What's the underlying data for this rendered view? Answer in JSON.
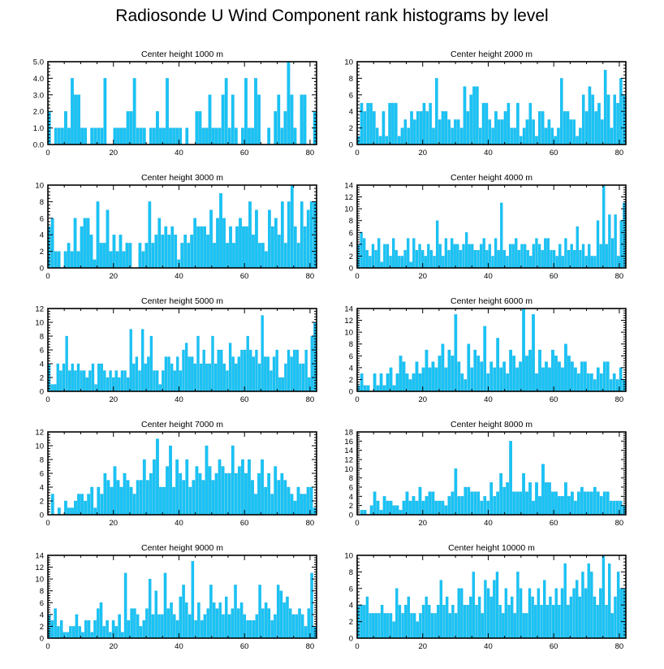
{
  "title": "Radiosonde U Wind Component rank histograms by level",
  "colors": {
    "bar": "#19c3f5",
    "bar_edge": "#0aa8dc",
    "axis": "#000000"
  },
  "chart_data": [
    {
      "type": "bar",
      "title": "Center height 1000 m",
      "xlim": [
        0,
        82
      ],
      "ylim": [
        0,
        5
      ],
      "xticks": [
        0,
        20,
        40,
        60,
        80
      ],
      "yticks": [
        0,
        1,
        2,
        3,
        4,
        5
      ],
      "ytick_labels": [
        "0.0",
        "1.0",
        "2.0",
        "3.0",
        "4.0",
        "5.0"
      ],
      "values": [
        2,
        0,
        1,
        1,
        1,
        2,
        1,
        4,
        3,
        3,
        1,
        1,
        0,
        1,
        1,
        1,
        1,
        4,
        0,
        0,
        1,
        1,
        1,
        1,
        2,
        2,
        4,
        1,
        1,
        1,
        0,
        1,
        1,
        2,
        1,
        1,
        4,
        1,
        1,
        1,
        1,
        0,
        1,
        0,
        0,
        2,
        2,
        1,
        1,
        3,
        1,
        1,
        1,
        3,
        4,
        1,
        3,
        1,
        0,
        1,
        4,
        1,
        1,
        4,
        3,
        0,
        0,
        1,
        0,
        2,
        3,
        1,
        2,
        5,
        3,
        1,
        0,
        3,
        3,
        0,
        0,
        2
      ]
    },
    {
      "type": "bar",
      "title": "Center height 2000 m",
      "xlim": [
        0,
        82
      ],
      "ylim": [
        0,
        10
      ],
      "xticks": [
        0,
        20,
        40,
        60,
        80
      ],
      "yticks": [
        0,
        2,
        4,
        6,
        8,
        10
      ],
      "ytick_labels": [
        "0",
        "2",
        "4",
        "6",
        "8",
        "10"
      ],
      "values": [
        1,
        5,
        4,
        5,
        5,
        4,
        2,
        1,
        4,
        1,
        5,
        5,
        5,
        1,
        2,
        3,
        2,
        4,
        3,
        4,
        4,
        5,
        4,
        5,
        2,
        8,
        3,
        4,
        4,
        3,
        2,
        3,
        3,
        2,
        7,
        4,
        6,
        7,
        7,
        2,
        5,
        5,
        3,
        2,
        4,
        3,
        3,
        4,
        5,
        2,
        2,
        5,
        1,
        2,
        3,
        5,
        3,
        1,
        4,
        4,
        2,
        3,
        2,
        1,
        2,
        8,
        4,
        4,
        3,
        3,
        1,
        2,
        6,
        4,
        7,
        6,
        4,
        5,
        3,
        9,
        6,
        2,
        6,
        5,
        8,
        6
      ]
    },
    {
      "type": "bar",
      "title": "Center height 3000 m",
      "xlim": [
        0,
        82
      ],
      "ylim": [
        0,
        10
      ],
      "xticks": [
        0,
        20,
        40,
        60,
        80
      ],
      "yticks": [
        0,
        2,
        4,
        6,
        8,
        10
      ],
      "ytick_labels": [
        "0",
        "2",
        "4",
        "6",
        "8",
        "10"
      ],
      "values": [
        5,
        6,
        2,
        2,
        0,
        2,
        3,
        2,
        6,
        2,
        5,
        6,
        6,
        4,
        1,
        8,
        3,
        3,
        7,
        2,
        4,
        2,
        4,
        2,
        3,
        3,
        0,
        0,
        3,
        2,
        3,
        8,
        3,
        4,
        6,
        4,
        5,
        4,
        5,
        4,
        1,
        3,
        4,
        3,
        4,
        6,
        5,
        5,
        5,
        4,
        7,
        3,
        6,
        9,
        6,
        3,
        5,
        3,
        5,
        6,
        5,
        5,
        8,
        4,
        7,
        3,
        3,
        2,
        7,
        5,
        6,
        4,
        8,
        3,
        8,
        10,
        5,
        3,
        8,
        5,
        7,
        8,
        8
      ]
    },
    {
      "type": "bar",
      "title": "Center height 4000 m",
      "xlim": [
        0,
        82
      ],
      "ylim": [
        0,
        14
      ],
      "xticks": [
        0,
        20,
        40,
        60,
        80
      ],
      "yticks": [
        0,
        2,
        4,
        6,
        8,
        10,
        12,
        14
      ],
      "ytick_labels": [
        "0",
        "2",
        "4",
        "6",
        "8",
        "10",
        "12",
        "14"
      ],
      "values": [
        4,
        6,
        5,
        3,
        2,
        4,
        3,
        5,
        1,
        4,
        4,
        2,
        5,
        3,
        2,
        2,
        3,
        5,
        1,
        5,
        3,
        4,
        3,
        2,
        4,
        3,
        2,
        8,
        4,
        2,
        5,
        3,
        5,
        4,
        4,
        3,
        4,
        6,
        4,
        4,
        3,
        3,
        4,
        5,
        3,
        4,
        2,
        5,
        3,
        11,
        3,
        2,
        4,
        4,
        5,
        3,
        4,
        4,
        3,
        2,
        4,
        5,
        4,
        3,
        5,
        5,
        3,
        3,
        2,
        4,
        2,
        5,
        3,
        4,
        3,
        7,
        3,
        4,
        2,
        4,
        2,
        2,
        8,
        4,
        14,
        4,
        9,
        5,
        9,
        2,
        8,
        11
      ]
    },
    {
      "type": "bar",
      "title": "Center height 5000 m",
      "xlim": [
        0,
        82
      ],
      "ylim": [
        0,
        12
      ],
      "xticks": [
        0,
        20,
        40,
        60,
        80
      ],
      "yticks": [
        0,
        2,
        4,
        6,
        8,
        10,
        12
      ],
      "ytick_labels": [
        "0",
        "2",
        "4",
        "6",
        "8",
        "10",
        "12"
      ],
      "values": [
        4,
        1,
        1,
        4,
        3,
        4,
        8,
        3,
        4,
        3,
        4,
        3,
        3,
        2,
        3,
        4,
        1,
        4,
        4,
        3,
        2,
        3,
        2,
        3,
        2,
        3,
        3,
        2,
        9,
        4,
        5,
        3,
        9,
        4,
        5,
        8,
        3,
        3,
        1,
        3,
        5,
        5,
        4,
        3,
        5,
        3,
        6,
        7,
        5,
        5,
        4,
        8,
        4,
        6,
        4,
        4,
        8,
        4,
        6,
        6,
        4,
        3,
        7,
        5,
        4,
        5,
        6,
        6,
        8,
        6,
        5,
        6,
        4,
        11,
        5,
        5,
        3,
        5,
        6,
        2,
        2,
        4,
        6,
        5,
        6,
        6,
        4,
        4,
        6,
        2,
        8,
        10
      ]
    },
    {
      "type": "bar",
      "title": "Center height 6000 m",
      "xlim": [
        0,
        82
      ],
      "ylim": [
        0,
        14
      ],
      "xticks": [
        0,
        20,
        40,
        60,
        80
      ],
      "yticks": [
        0,
        2,
        4,
        6,
        8,
        10,
        12,
        14
      ],
      "ytick_labels": [
        "0",
        "2",
        "4",
        "6",
        "8",
        "10",
        "12",
        "14"
      ],
      "values": [
        1,
        3,
        1,
        1,
        0,
        3,
        1,
        3,
        1,
        3,
        4,
        1,
        3,
        6,
        5,
        3,
        2,
        3,
        5,
        3,
        4,
        7,
        4,
        5,
        4,
        6,
        8,
        4,
        7,
        6,
        13,
        5,
        3,
        2,
        8,
        4,
        7,
        6,
        5,
        11,
        3,
        5,
        4,
        9,
        4,
        5,
        3,
        7,
        6,
        4,
        5,
        14,
        6,
        7,
        13,
        3,
        7,
        4,
        5,
        4,
        7,
        6,
        5,
        4,
        8,
        6,
        5,
        4,
        3,
        5,
        5,
        3,
        3,
        2,
        4,
        3,
        5,
        5,
        2,
        3,
        2,
        4,
        2
      ]
    },
    {
      "type": "bar",
      "title": "Center height 7000 m",
      "xlim": [
        0,
        82
      ],
      "ylim": [
        0,
        12
      ],
      "xticks": [
        0,
        20,
        40,
        60,
        80
      ],
      "yticks": [
        0,
        2,
        4,
        6,
        8,
        10,
        12
      ],
      "ytick_labels": [
        "0",
        "2",
        "4",
        "6",
        "8",
        "10",
        "12"
      ],
      "values": [
        0,
        3,
        0,
        1,
        0,
        2,
        1,
        1,
        2,
        3,
        3,
        2,
        3,
        4,
        1,
        4,
        3,
        6,
        5,
        4,
        7,
        5,
        4,
        6,
        5,
        4,
        3,
        5,
        5,
        8,
        5,
        6,
        8,
        11,
        4,
        4,
        7,
        10,
        4,
        8,
        6,
        5,
        8,
        4,
        5,
        7,
        6,
        5,
        10,
        7,
        5,
        6,
        8,
        7,
        6,
        6,
        10,
        6,
        7,
        8,
        6,
        8,
        5,
        3,
        6,
        8,
        4,
        6,
        3,
        7,
        5,
        6,
        5,
        4,
        3,
        2,
        4,
        3,
        3,
        4,
        4,
        1
      ]
    },
    {
      "type": "bar",
      "title": "Center height 8000 m",
      "xlim": [
        0,
        82
      ],
      "ylim": [
        0,
        18
      ],
      "xticks": [
        0,
        20,
        40,
        60,
        80
      ],
      "yticks": [
        0,
        2,
        4,
        6,
        8,
        10,
        12,
        14,
        16,
        18
      ],
      "ytick_labels": [
        "0",
        "2",
        "4",
        "6",
        "8",
        "10",
        "12",
        "14",
        "16",
        "18"
      ],
      "values": [
        0,
        1,
        1,
        0,
        2,
        5,
        3,
        1,
        4,
        3,
        3,
        2,
        2,
        1,
        3,
        5,
        3,
        4,
        3,
        6,
        3,
        4,
        5,
        5,
        3,
        3,
        3,
        2,
        4,
        5,
        10,
        4,
        4,
        6,
        6,
        5,
        5,
        5,
        3,
        4,
        3,
        7,
        4,
        5,
        9,
        6,
        7,
        16,
        5,
        5,
        5,
        9,
        5,
        7,
        3,
        7,
        4,
        11,
        7,
        7,
        5,
        5,
        4,
        4,
        7,
        4,
        5,
        3,
        5,
        6,
        5,
        5,
        5,
        6,
        5,
        4,
        5,
        5,
        3,
        3,
        3,
        3,
        2
      ]
    },
    {
      "type": "bar",
      "title": "Center height 9000 m",
      "xlim": [
        0,
        82
      ],
      "ylim": [
        0,
        14
      ],
      "xticks": [
        0,
        20,
        40,
        60,
        80
      ],
      "yticks": [
        0,
        2,
        4,
        6,
        8,
        10,
        12,
        14
      ],
      "ytick_labels": [
        "0",
        "2",
        "4",
        "6",
        "8",
        "10",
        "12",
        "14"
      ],
      "values": [
        4,
        3,
        5,
        2,
        3,
        1,
        1,
        2,
        2,
        4,
        2,
        1,
        3,
        3,
        1,
        3,
        5,
        6,
        2,
        3,
        1,
        3,
        2,
        4,
        1,
        11,
        3,
        5,
        5,
        4,
        2,
        3,
        5,
        10,
        4,
        8,
        4,
        4,
        11,
        5,
        6,
        4,
        3,
        7,
        9,
        6,
        4,
        13,
        3,
        6,
        3,
        4,
        5,
        9,
        6,
        5,
        6,
        4,
        7,
        4,
        5,
        9,
        5,
        6,
        4,
        3,
        3,
        3,
        4,
        9,
        5,
        6,
        5,
        3,
        4,
        9,
        8,
        6,
        7,
        5,
        4,
        4,
        5,
        4,
        2,
        5,
        11,
        2
      ]
    },
    {
      "type": "bar",
      "title": "Center height 10000 m",
      "xlim": [
        0,
        82
      ],
      "ylim": [
        0,
        10
      ],
      "xticks": [
        0,
        20,
        40,
        60,
        80
      ],
      "yticks": [
        0,
        2,
        4,
        6,
        8,
        10
      ],
      "ytick_labels": [
        "0",
        "2",
        "4",
        "6",
        "8",
        "10"
      ],
      "values": [
        4,
        4,
        4,
        5,
        3,
        3,
        3,
        3,
        4,
        3,
        3,
        3,
        2,
        6,
        4,
        3,
        4,
        5,
        3,
        3,
        2,
        3,
        4,
        5,
        4,
        3,
        3,
        4,
        7,
        4,
        5,
        3,
        4,
        3,
        6,
        6,
        4,
        4,
        5,
        8,
        4,
        5,
        3,
        7,
        6,
        5,
        7,
        8,
        4,
        3,
        6,
        4,
        5,
        3,
        8,
        6,
        3,
        3,
        6,
        5,
        4,
        6,
        4,
        7,
        4,
        5,
        4,
        6,
        4,
        6,
        9,
        4,
        5,
        6,
        7,
        5,
        8,
        6,
        9,
        8,
        5,
        4,
        6,
        10,
        4,
        9,
        3,
        5,
        8,
        6,
        6
      ]
    }
  ]
}
